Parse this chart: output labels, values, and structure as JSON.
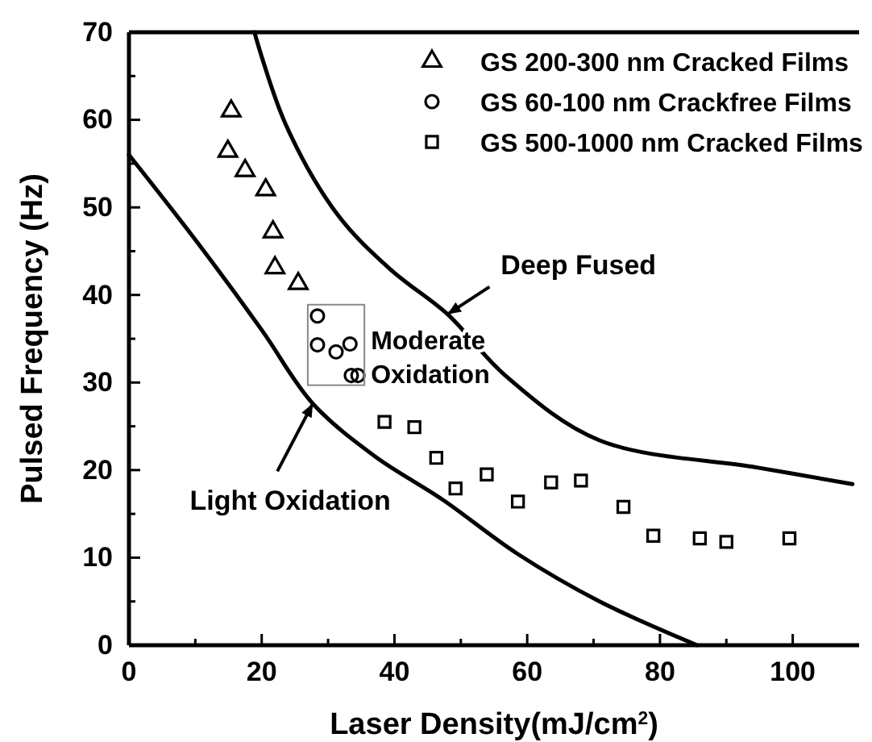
{
  "chart_data": {
    "type": "scatter",
    "xlabel": "Laser Density(mJ/cm$^{2}$)",
    "ylabel": "Pulsed Frequency (Hz)",
    "xlim": [
      0,
      110
    ],
    "ylim": [
      0,
      70
    ],
    "xticks": [
      0,
      20,
      40,
      60,
      80,
      100
    ],
    "yticks": [
      0,
      10,
      20,
      30,
      40,
      50,
      60,
      70
    ],
    "legend": "top right",
    "grid": false,
    "series": [
      {
        "name": "GS 200-300 nm Cracked Films",
        "marker": "triangle",
        "color": "#000000",
        "x": [
          15.4,
          14.9,
          17.5,
          20.6,
          21.7,
          22,
          25.5
        ],
        "values": [
          61,
          56.4,
          54.2,
          52,
          47.2,
          43.1,
          41.3
        ]
      },
      {
        "name": "GS 60-100 nm Crackfree Films",
        "marker": "circle",
        "color": "#000000",
        "x": [
          28.4,
          28.4,
          31.2,
          33.3,
          33.5,
          34.5
        ],
        "values": [
          37.6,
          34.3,
          33.5,
          34.4,
          30.8,
          30.8
        ]
      },
      {
        "name": "GS 500-1000 nm Cracked Films",
        "marker": "square",
        "color": "#000000",
        "x": [
          38.5,
          43,
          46.3,
          49.2,
          53.9,
          58.6,
          63.6,
          68.1,
          74.5,
          79,
          86,
          90,
          99.5
        ],
        "values": [
          25.5,
          24.9,
          21.4,
          17.9,
          19.5,
          16.4,
          18.6,
          18.8,
          15.8,
          12.5,
          12.2,
          11.8,
          12.2
        ]
      },
      {
        "type": "line",
        "marker": "none",
        "line_style": "solid",
        "color": "#000000",
        "x": [
          0,
          10,
          20,
          27.7,
          37,
          47.3,
          58.4,
          70.9,
          85.6
        ],
        "values": [
          56,
          46.3,
          36,
          27.6,
          21.6,
          16.6,
          10.5,
          5,
          0
        ]
      },
      {
        "type": "line",
        "marker": "none",
        "line_style": "solid",
        "color": "#000000",
        "x": [
          18.9,
          23.6,
          31.4,
          39.4,
          48,
          56.7,
          70.9,
          94.6,
          109
        ],
        "values": [
          70,
          59.5,
          49.2,
          42.9,
          37.8,
          30.8,
          23.4,
          20.3,
          18.4
        ]
      }
    ],
    "annotations": [
      {
        "text": "Deep Fused",
        "x": 48,
        "y": 37.8
      },
      "Moderate\nOxidation",
      {
        "text": "Light Oxidation",
        "x": 27.7,
        "y": 27.6
      }
    ]
  }
}
